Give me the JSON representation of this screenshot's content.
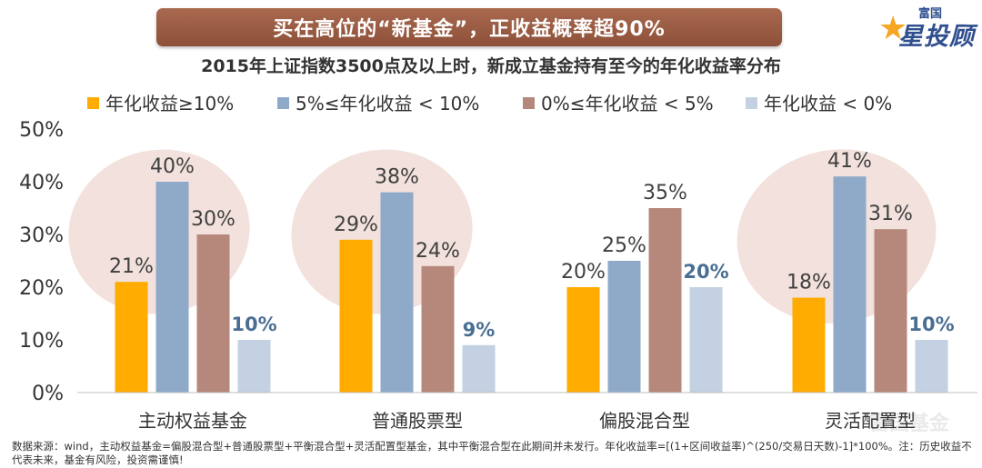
{
  "banner": {
    "title": "买在高位的“新基金”，正收益概率超90%"
  },
  "logo": {
    "small_text": "富国",
    "big_text": "星投顾",
    "watermark": "富国基金"
  },
  "chart_data": {
    "type": "bar",
    "title": "2015年上证指数3500点及以上时，新成立基金持有至今的年化收益率分布",
    "categories": [
      "主动权益基金",
      "普通股票型",
      "偏股混合型",
      "灵活配置型"
    ],
    "series": [
      {
        "name": "年化收益≥10%",
        "color": "#ffab00",
        "values": [
          21,
          29,
          20,
          18
        ],
        "labels": [
          "21%",
          "29%",
          "20%",
          "18%"
        ],
        "label_color": "#404040"
      },
      {
        "name": "5%≤年化收益 < 10%",
        "color": "#8faac9",
        "values": [
          40,
          38,
          25,
          41
        ],
        "labels": [
          "40%",
          "38%",
          "25%",
          "41%"
        ],
        "label_color": "#404040"
      },
      {
        "name": "0%≤年化收益 < 5%",
        "color": "#b5887b",
        "values": [
          30,
          24,
          35,
          31
        ],
        "labels": [
          "30%",
          "24%",
          "35%",
          "31%"
        ],
        "label_color": "#404040"
      },
      {
        "name": "年化收益 < 0%",
        "color": "#c3d1e2",
        "values": [
          10,
          9,
          20,
          10
        ],
        "labels": [
          "10%",
          "9%",
          "20%",
          "10%"
        ],
        "label_color": "#4a6f93"
      }
    ],
    "yticks": [
      "0%",
      "10%",
      "20%",
      "30%",
      "40%",
      "50%"
    ],
    "ylim": [
      0,
      50
    ],
    "legend_position": "top",
    "grid": false
  },
  "footnote": "数据来源：wind，主动权益基金=偏股混合型+普通股票型+平衡混合型+灵活配置型基金，其中平衡混合型在此期间并未发行。年化收益率=[(1+区间收益率)^(250/交易日天数)-1]*100%。注：历史收益不代表未来，基金有风险，投资需谨慎!"
}
